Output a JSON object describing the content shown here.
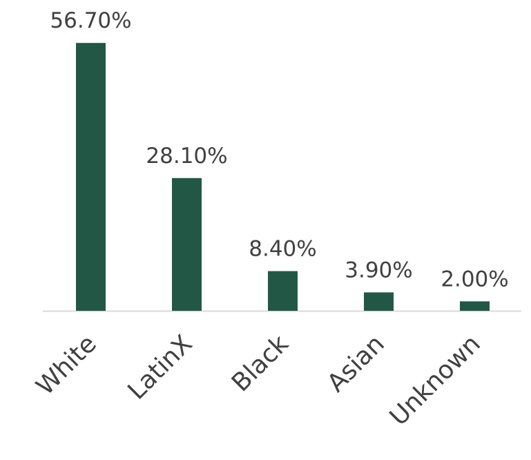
{
  "chart_data": {
    "type": "bar",
    "categories": [
      "White",
      "LatinX",
      "Black",
      "Asian",
      "Unknown"
    ],
    "values": [
      56.7,
      28.1,
      8.4,
      3.9,
      2.0
    ],
    "value_labels": [
      "56.70%",
      "28.10%",
      "8.40%",
      "3.90%",
      "2.00%"
    ],
    "color": "#235745"
  }
}
